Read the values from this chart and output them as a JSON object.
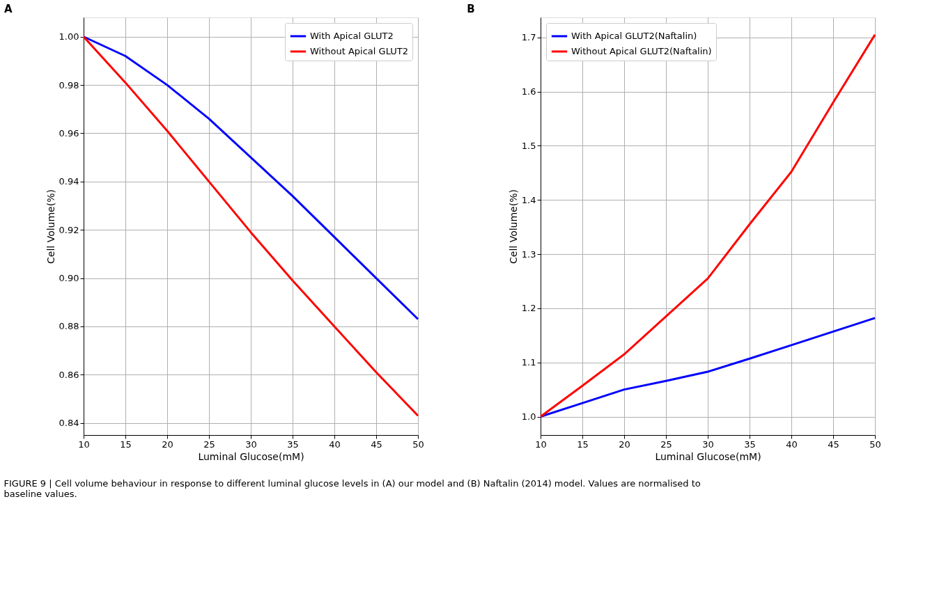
{
  "chart_data": [
    {
      "type": "line",
      "title": "A",
      "xlabel": "Luminal Glucose(mM)",
      "ylabel": "Cell Volume(%)",
      "x": [
        10,
        15,
        20,
        25,
        30,
        35,
        40,
        45,
        50
      ],
      "series": [
        {
          "name": "With Apical GLUT2",
          "color": "#0000ff",
          "values": [
            1.0,
            0.992,
            0.98,
            0.966,
            0.95,
            0.934,
            0.917,
            0.9,
            0.883
          ]
        },
        {
          "name": "Without Apical GLUT2",
          "color": "#ff0000",
          "values": [
            1.0,
            0.981,
            0.961,
            0.94,
            0.919,
            0.899,
            0.88,
            0.861,
            0.843
          ]
        }
      ],
      "xlim": [
        10,
        50
      ],
      "xticks": [
        10,
        15,
        20,
        25,
        30,
        35,
        40,
        45,
        50
      ],
      "ylim": [
        0.835,
        1.008
      ],
      "yticks": [
        {
          "value": 0.84,
          "label": "0.84"
        },
        {
          "value": 0.86,
          "label": "0.86"
        },
        {
          "value": 0.88,
          "label": "0.88"
        },
        {
          "value": 0.9,
          "label": "0.90"
        },
        {
          "value": 0.92,
          "label": "0.92"
        },
        {
          "value": 0.94,
          "label": "0.94"
        },
        {
          "value": 0.96,
          "label": "0.96"
        },
        {
          "value": 0.98,
          "label": "0.98"
        },
        {
          "value": 1.0,
          "label": "1.00"
        }
      ],
      "grid": true,
      "legend": "top right",
      "annotations": [
        "FIGURE 9 | Cell volume behaviour in response to different luminal glucose levels in (A) our model and (B) Naftalin (2014) model. Values are normalised to baseline values."
      ]
    },
    {
      "type": "line",
      "title": "B",
      "xlabel": "Luminal Glucose(mM)",
      "ylabel": "Cell Volume(%)",
      "x": [
        10,
        15,
        20,
        25,
        30,
        35,
        40,
        45,
        50
      ],
      "series": [
        {
          "name": "With Apical GLUT2(Naftalin)",
          "color": "#0000ff",
          "values": [
            1.0,
            1.025,
            1.05,
            1.066,
            1.083,
            1.107,
            1.132,
            1.157,
            1.182
          ]
        },
        {
          "name": "Without Apical GLUT2(Naftalin)",
          "color": "#ff0000",
          "values": [
            1.0,
            1.057,
            1.115,
            1.185,
            1.255,
            1.355,
            1.452,
            1.58,
            1.705
          ]
        }
      ],
      "xlim": [
        10,
        50
      ],
      "xticks": [
        10,
        15,
        20,
        25,
        30,
        35,
        40,
        45,
        50
      ],
      "ylim": [
        0.966,
        1.737
      ],
      "yticks": [
        {
          "value": 1.0,
          "label": "1.0"
        },
        {
          "value": 1.1,
          "label": "1.1"
        },
        {
          "value": 1.2,
          "label": "1.2"
        },
        {
          "value": 1.3,
          "label": "1.3"
        },
        {
          "value": 1.4,
          "label": "1.4"
        },
        {
          "value": 1.5,
          "label": "1.5"
        },
        {
          "value": 1.6,
          "label": "1.6"
        },
        {
          "value": 1.7,
          "label": "1.7"
        }
      ],
      "grid": true,
      "legend": "top left"
    }
  ]
}
